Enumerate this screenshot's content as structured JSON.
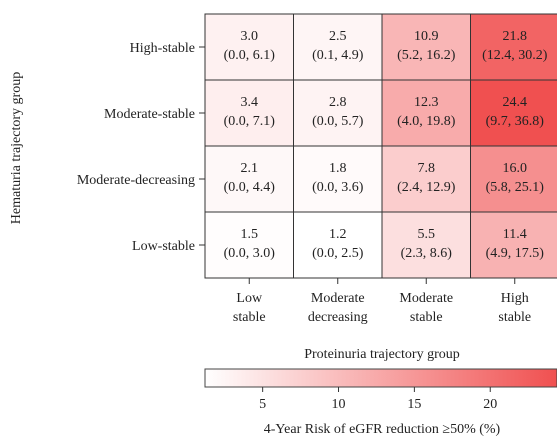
{
  "chart_data": {
    "type": "heatmap",
    "ylabel": "Hematuria trajectory group",
    "xlabel": "Proteinuria trajectory group",
    "rows": [
      "High-stable",
      "Moderate-stable",
      "Moderate-decreasing",
      "Low-stable"
    ],
    "columns": [
      [
        "Low",
        "stable"
      ],
      [
        "Moderate",
        "decreasing"
      ],
      [
        "Moderate",
        "stable"
      ],
      [
        "High",
        "stable"
      ]
    ],
    "values": [
      [
        3.0,
        2.5,
        10.9,
        21.8
      ],
      [
        3.4,
        2.8,
        12.3,
        24.4
      ],
      [
        2.1,
        1.8,
        7.8,
        16.0
      ],
      [
        1.5,
        1.2,
        5.5,
        11.4
      ]
    ],
    "value_labels": [
      [
        "3.0",
        "2.5",
        "10.9",
        "21.8"
      ],
      [
        "3.4",
        "2.8",
        "12.3",
        "24.4"
      ],
      [
        "2.1",
        "1.8",
        "7.8",
        "16.0"
      ],
      [
        "1.5",
        "1.2",
        "5.5",
        "11.4"
      ]
    ],
    "ci_labels": [
      [
        "(0.0, 6.1)",
        "(0.1, 4.9)",
        "(5.2, 16.2)",
        "(12.4, 30.2)"
      ],
      [
        "(0.0, 7.1)",
        "(0.0, 5.7)",
        "(4.0, 19.8)",
        "(9.7, 36.8)"
      ],
      [
        "(0.0, 4.4)",
        "(0.0, 3.6)",
        "(2.4, 12.9)",
        "(5.8, 25.1)"
      ],
      [
        "(0.0, 3.0)",
        "(0.0, 2.5)",
        "(2.3, 8.6)",
        "(4.9, 17.5)"
      ]
    ],
    "colorbar": {
      "title": "4-Year Risk of eGFR reduction ≥50% (%)",
      "ticks": [
        5,
        10,
        15,
        20
      ],
      "range": [
        1.2,
        24.4
      ],
      "low_color": "#ffffff",
      "high_color": "#f05050"
    }
  }
}
